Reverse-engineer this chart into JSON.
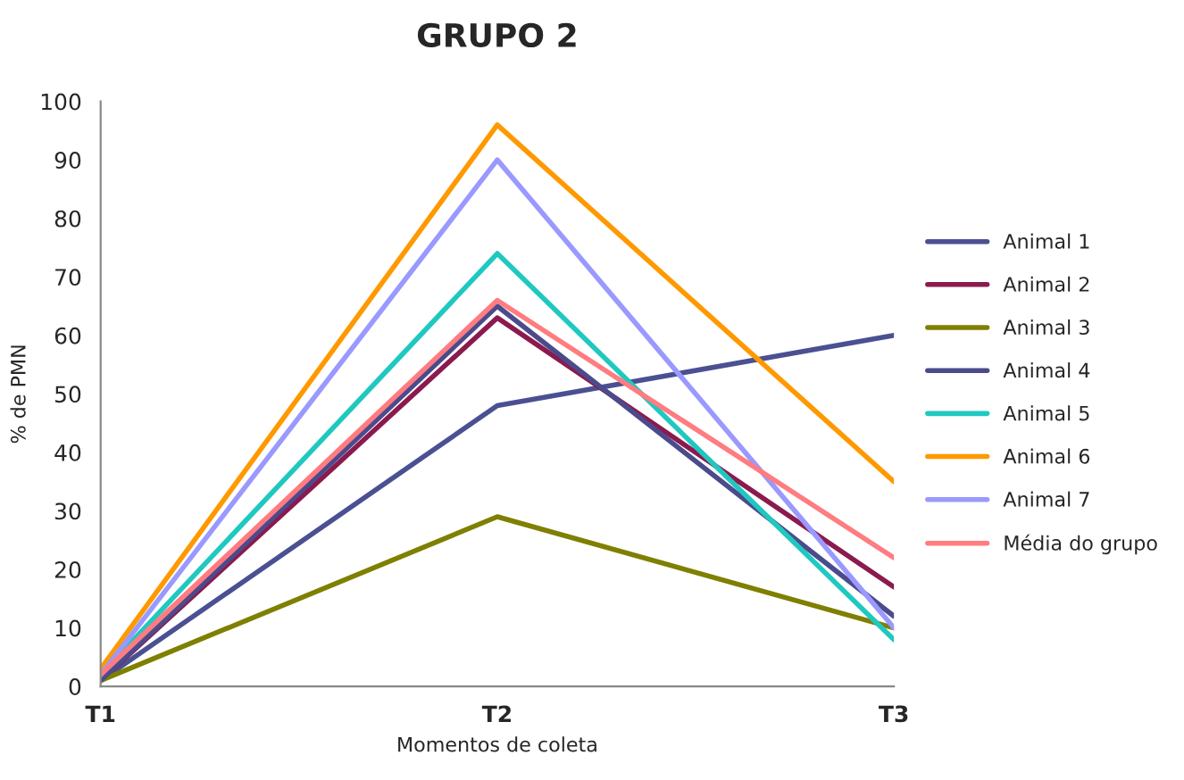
{
  "chart_data": {
    "type": "line",
    "title": "GRUPO 2",
    "xlabel": "Momentos de coleta",
    "ylabel": "% de PMN",
    "categories": [
      "T1",
      "T2",
      "T3"
    ],
    "series": [
      {
        "name": "Animal 1",
        "color": "#4a5092",
        "values": [
          1,
          48,
          60
        ]
      },
      {
        "name": "Animal 2",
        "color": "#8b1a4e",
        "values": [
          1,
          63,
          17
        ]
      },
      {
        "name": "Animal 3",
        "color": "#7f7f00",
        "values": [
          1,
          29,
          10
        ]
      },
      {
        "name": "Animal 4",
        "color": "#4b4b8c",
        "values": [
          1,
          65,
          12
        ]
      },
      {
        "name": "Animal 5",
        "color": "#1fc8c0",
        "values": [
          2,
          74,
          8
        ]
      },
      {
        "name": "Animal 6",
        "color": "#ff9900",
        "values": [
          3,
          96,
          35
        ]
      },
      {
        "name": "Animal 7",
        "color": "#9999ff",
        "values": [
          2,
          90,
          10
        ]
      },
      {
        "name": "Média do grupo",
        "color": "#ff7c80",
        "values": [
          2,
          66,
          22
        ]
      }
    ],
    "ylim": [
      0,
      100
    ],
    "yticks": [
      0,
      10,
      20,
      30,
      40,
      50,
      60,
      70,
      80,
      90,
      100
    ],
    "grid": false,
    "legend": "right",
    "marker": "none",
    "line_style": "solid"
  }
}
